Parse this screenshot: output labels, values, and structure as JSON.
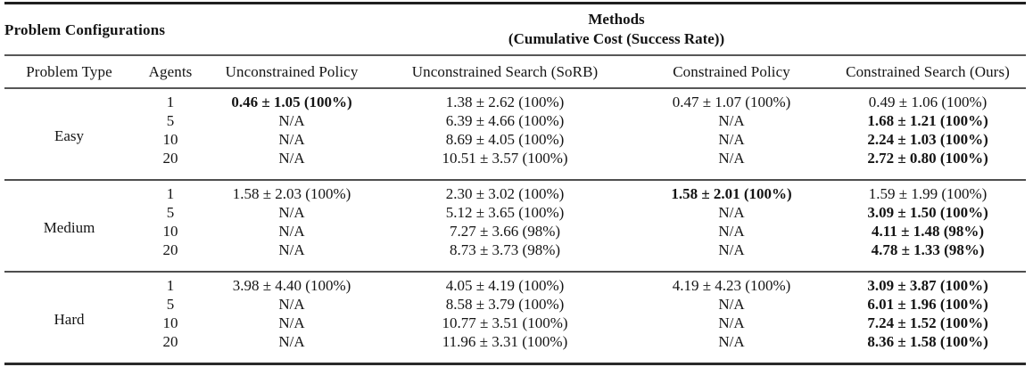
{
  "table": {
    "header": {
      "left_title": "Problem Configurations",
      "methods_title": "Methods",
      "methods_subtitle": "(Cumulative Cost (Success Rate))"
    },
    "columns": [
      "Problem Type",
      "Agents",
      "Unconstrained Policy",
      "Unconstrained Search (SoRB)",
      "Constrained Policy",
      "Constrained Search (Ours)"
    ],
    "groups": [
      {
        "problem_type": "Easy",
        "rows": [
          {
            "agents": "1",
            "unconstrained_policy": "0.46 ± 1.05 (100%)",
            "unconstrained_search_sorb": "1.38 ± 2.62 (100%)",
            "constrained_policy": "0.47 ± 1.07 (100%)",
            "constrained_search_ours": "0.49 ± 1.06 (100%)"
          },
          {
            "agents": "5",
            "unconstrained_policy": "N/A",
            "unconstrained_search_sorb": "6.39 ± 4.66 (100%)",
            "constrained_policy": "N/A",
            "constrained_search_ours": "1.68 ± 1.21 (100%)"
          },
          {
            "agents": "10",
            "unconstrained_policy": "N/A",
            "unconstrained_search_sorb": "8.69 ± 4.05 (100%)",
            "constrained_policy": "N/A",
            "constrained_search_ours": "2.24 ± 1.03 (100%)"
          },
          {
            "agents": "20",
            "unconstrained_policy": "N/A",
            "unconstrained_search_sorb": "10.51 ± 3.57 (100%)",
            "constrained_policy": "N/A",
            "constrained_search_ours": "2.72 ± 0.80 (100%)"
          }
        ]
      },
      {
        "problem_type": "Medium",
        "rows": [
          {
            "agents": "1",
            "unconstrained_policy": "1.58 ± 2.03 (100%)",
            "unconstrained_search_sorb": "2.30 ± 3.02 (100%)",
            "constrained_policy": "1.58 ± 2.01 (100%)",
            "constrained_search_ours": "1.59 ± 1.99 (100%)"
          },
          {
            "agents": "5",
            "unconstrained_policy": "N/A",
            "unconstrained_search_sorb": "5.12 ± 3.65 (100%)",
            "constrained_policy": "N/A",
            "constrained_search_ours": "3.09 ± 1.50 (100%)"
          },
          {
            "agents": "10",
            "unconstrained_policy": "N/A",
            "unconstrained_search_sorb": "7.27 ± 3.66 (98%)",
            "constrained_policy": "N/A",
            "constrained_search_ours": "4.11 ± 1.48 (98%)"
          },
          {
            "agents": "20",
            "unconstrained_policy": "N/A",
            "unconstrained_search_sorb": "8.73 ± 3.73 (98%)",
            "constrained_policy": "N/A",
            "constrained_search_ours": "4.78 ± 1.33 (98%)"
          }
        ]
      },
      {
        "problem_type": "Hard",
        "rows": [
          {
            "agents": "1",
            "unconstrained_policy": "3.98 ± 4.40 (100%)",
            "unconstrained_search_sorb": "4.05 ± 4.19 (100%)",
            "constrained_policy": "4.19 ± 4.23 (100%)",
            "constrained_search_ours": "3.09 ± 3.87 (100%)"
          },
          {
            "agents": "5",
            "unconstrained_policy": "N/A",
            "unconstrained_search_sorb": "8.58 ± 3.79 (100%)",
            "constrained_policy": "N/A",
            "constrained_search_ours": "6.01 ± 1.96 (100%)"
          },
          {
            "agents": "10",
            "unconstrained_policy": "N/A",
            "unconstrained_search_sorb": "10.77 ± 3.51 (100%)",
            "constrained_policy": "N/A",
            "constrained_search_ours": "7.24 ± 1.52 (100%)"
          },
          {
            "agents": "20",
            "unconstrained_policy": "N/A",
            "unconstrained_search_sorb": "11.96 ± 3.31 (100%)",
            "constrained_policy": "N/A",
            "constrained_search_ours": "8.36 ± 1.58 (100%)"
          }
        ]
      }
    ],
    "colors": {
      "text": "#141414",
      "rule_dark": "#1f1f1f",
      "rule_gray": "#565656",
      "background": "#ffffff"
    }
  }
}
